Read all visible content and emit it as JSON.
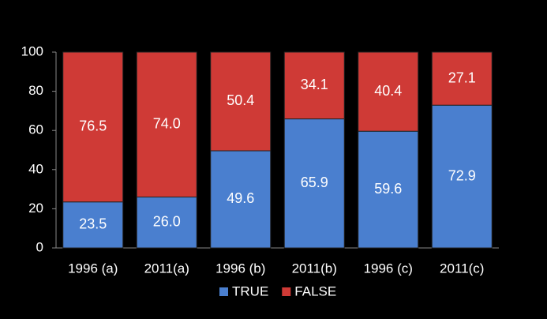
{
  "chart_data": {
    "type": "stacked_bar",
    "categories": [
      "1996 (a)",
      "2011(a)",
      "1996 (b)",
      "2011(b)",
      "1996 (c)",
      "2011(c)"
    ],
    "series": [
      {
        "name": "TRUE",
        "color": "#4a7fcf",
        "values": [
          23.5,
          26,
          49.6,
          65.9,
          59.6,
          72.9
        ],
        "value_labels": [
          "23.5",
          "26.0",
          "49.6",
          "65.9",
          "59.6",
          "72.9"
        ]
      },
      {
        "name": "FALSE",
        "color": "#cf3a36",
        "values": [
          76.5,
          74,
          50.4,
          34.1,
          40.4,
          27.1
        ],
        "value_labels": [
          "76.5",
          "74.0",
          "50.4",
          "34.1",
          "40.4",
          "27.1"
        ]
      }
    ],
    "ylim": [
      0,
      100
    ],
    "yticks": [
      0,
      20,
      40,
      60,
      80,
      100
    ],
    "legend": "bottom"
  }
}
